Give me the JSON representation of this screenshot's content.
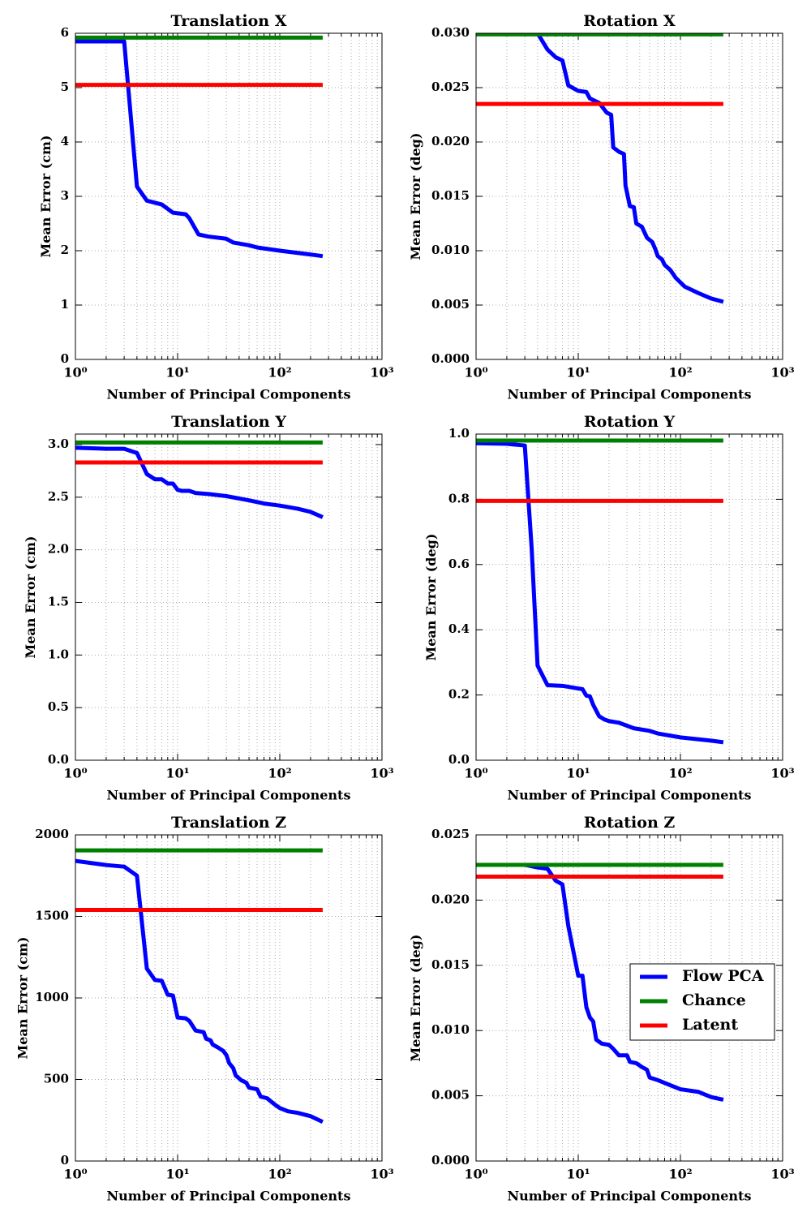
{
  "chart_data": [
    {
      "type": "line",
      "title": "Translation X",
      "xlabel": "Number of Principal Components",
      "ylabel": "Mean Error (cm)",
      "xscale": "log",
      "xlim": [
        1,
        1000
      ],
      "xticks": [
        {
          "value": 1,
          "label": "10⁰"
        },
        {
          "value": 10,
          "label": "10¹"
        },
        {
          "value": 100,
          "label": "10²"
        },
        {
          "value": 1000,
          "label": "10³"
        }
      ],
      "ylim": [
        0,
        6
      ],
      "yticks": [
        0,
        1,
        2,
        3,
        4,
        5,
        6
      ],
      "grid": true,
      "series": [
        {
          "color": "#0000ff",
          "x": [
            1,
            3,
            4,
            5,
            7,
            9,
            12,
            13,
            16,
            20,
            30,
            35,
            50,
            60,
            100,
            200,
            263
          ],
          "values": [
            5.85,
            5.85,
            3.18,
            2.92,
            2.85,
            2.7,
            2.67,
            2.6,
            2.3,
            2.26,
            2.22,
            2.15,
            2.1,
            2.06,
            2.0,
            1.93,
            1.9
          ]
        },
        {
          "color": "#008000",
          "x": [
            1,
            263
          ],
          "values": [
            5.92,
            5.92
          ]
        },
        {
          "color": "#ff0000",
          "x": [
            1,
            263
          ],
          "values": [
            5.05,
            5.05
          ]
        }
      ]
    },
    {
      "type": "line",
      "title": "Rotation X",
      "xlabel": "Number of Principal Components",
      "ylabel": "Mean Error (deg)",
      "xscale": "log",
      "xlim": [
        1,
        1000
      ],
      "xticks": [
        {
          "value": 1,
          "label": "10⁰"
        },
        {
          "value": 10,
          "label": "10¹"
        },
        {
          "value": 100,
          "label": "10²"
        },
        {
          "value": 1000,
          "label": "10³"
        }
      ],
      "ylim": [
        0,
        0.03
      ],
      "yticks": [
        {
          "value": 0,
          "label": "0.000"
        },
        0.005,
        {
          "value": 0.01,
          "label": "0.010"
        },
        0.015,
        {
          "value": 0.02,
          "label": "0.020"
        },
        0.025,
        {
          "value": 0.03,
          "label": "0.030"
        }
      ],
      "grid": true,
      "series": [
        {
          "color": "#0000ff",
          "x": [
            4,
            5,
            6,
            7,
            8,
            10,
            12,
            13,
            16,
            19,
            21,
            22,
            25,
            28,
            29,
            32,
            35,
            37,
            42,
            47,
            53,
            57,
            60,
            66,
            70,
            80,
            90,
            110,
            150,
            200,
            263
          ],
          "values": [
            0.03,
            0.0285,
            0.0278,
            0.0275,
            0.0252,
            0.0247,
            0.0246,
            0.024,
            0.0236,
            0.0227,
            0.0225,
            0.0195,
            0.0191,
            0.0189,
            0.016,
            0.0141,
            0.014,
            0.0125,
            0.0122,
            0.0112,
            0.0108,
            0.0101,
            0.0095,
            0.0092,
            0.0087,
            0.0082,
            0.0075,
            0.0067,
            0.0061,
            0.0056,
            0.0053
          ]
        },
        {
          "color": "#008000",
          "x": [
            1,
            263
          ],
          "values": [
            0.0299,
            0.0299
          ]
        },
        {
          "color": "#ff0000",
          "x": [
            1,
            263
          ],
          "values": [
            0.0235,
            0.0235
          ]
        }
      ]
    },
    {
      "type": "line",
      "title": "Translation Y",
      "xlabel": "Number of Principal Components",
      "ylabel": "Mean Error (cm)",
      "xscale": "log",
      "xlim": [
        1,
        1000
      ],
      "xticks": [
        {
          "value": 1,
          "label": "10⁰"
        },
        {
          "value": 10,
          "label": "10¹"
        },
        {
          "value": 100,
          "label": "10²"
        },
        {
          "value": 1000,
          "label": "10³"
        }
      ],
      "ylim": [
        0,
        3.1
      ],
      "yticks": [
        {
          "value": 0,
          "label": "0.0"
        },
        0.5,
        {
          "value": 1,
          "label": "1.0"
        },
        1.5,
        {
          "value": 2,
          "label": "2.0"
        },
        2.5,
        {
          "value": 3,
          "label": "3.0"
        }
      ],
      "grid": true,
      "series": [
        {
          "color": "#0000ff",
          "x": [
            1,
            2,
            3,
            4,
            5,
            6,
            7,
            8,
            9,
            10,
            11,
            13,
            15,
            20,
            30,
            50,
            70,
            100,
            150,
            200,
            263
          ],
          "values": [
            2.97,
            2.96,
            2.96,
            2.92,
            2.72,
            2.67,
            2.67,
            2.63,
            2.63,
            2.57,
            2.56,
            2.56,
            2.54,
            2.53,
            2.51,
            2.47,
            2.44,
            2.42,
            2.39,
            2.36,
            2.31
          ]
        },
        {
          "color": "#008000",
          "x": [
            1,
            263
          ],
          "values": [
            3.02,
            3.02
          ]
        },
        {
          "color": "#ff0000",
          "x": [
            1,
            263
          ],
          "values": [
            2.83,
            2.83
          ]
        }
      ]
    },
    {
      "type": "line",
      "title": "Rotation Y",
      "xlabel": "Number of Principal Components",
      "ylabel": "Mean Error (deg)",
      "xscale": "log",
      "xlim": [
        1,
        1000
      ],
      "xticks": [
        {
          "value": 1,
          "label": "10⁰"
        },
        {
          "value": 10,
          "label": "10¹"
        },
        {
          "value": 100,
          "label": "10²"
        },
        {
          "value": 1000,
          "label": "10³"
        }
      ],
      "ylim": [
        0,
        1
      ],
      "yticks": [
        {
          "value": 0,
          "label": "0.0"
        },
        0.2,
        0.4,
        0.6,
        0.8,
        {
          "value": 1,
          "label": "1.0"
        }
      ],
      "grid": true,
      "series": [
        {
          "color": "#0000ff",
          "x": [
            1,
            2,
            3,
            3.5,
            4,
            5,
            7,
            10,
            11,
            12,
            13,
            14,
            16,
            18,
            20,
            25,
            35,
            50,
            60,
            100,
            200,
            263
          ],
          "values": [
            0.972,
            0.97,
            0.965,
            0.65,
            0.29,
            0.23,
            0.228,
            0.22,
            0.218,
            0.198,
            0.196,
            0.17,
            0.135,
            0.125,
            0.12,
            0.115,
            0.098,
            0.09,
            0.082,
            0.07,
            0.06,
            0.055
          ]
        },
        {
          "color": "#008000",
          "x": [
            1,
            263
          ],
          "values": [
            0.98,
            0.98
          ]
        },
        {
          "color": "#ff0000",
          "x": [
            1,
            263
          ],
          "values": [
            0.795,
            0.795
          ]
        }
      ]
    },
    {
      "type": "line",
      "title": "Translation Z",
      "xlabel": "Number of Principal Components",
      "ylabel": "Mean Error (cm)",
      "xscale": "log",
      "xlim": [
        1,
        1000
      ],
      "xticks": [
        {
          "value": 1,
          "label": "10⁰"
        },
        {
          "value": 10,
          "label": "10¹"
        },
        {
          "value": 100,
          "label": "10²"
        },
        {
          "value": 1000,
          "label": "10³"
        }
      ],
      "ylim": [
        0,
        2000
      ],
      "yticks": [
        0,
        500,
        1000,
        1500,
        2000
      ],
      "grid": true,
      "series": [
        {
          "color": "#0000ff",
          "x": [
            1,
            2,
            3,
            4,
            5,
            6,
            7,
            8,
            9,
            10,
            12,
            13,
            15,
            18,
            19,
            21,
            22,
            25,
            28,
            30,
            32,
            35,
            37,
            42,
            47,
            50,
            60,
            65,
            75,
            90,
            100,
            120,
            150,
            200,
            263
          ],
          "values": [
            1840,
            1815,
            1805,
            1750,
            1180,
            1110,
            1105,
            1020,
            1015,
            880,
            875,
            860,
            800,
            790,
            750,
            740,
            715,
            695,
            675,
            650,
            600,
            570,
            525,
            495,
            480,
            450,
            440,
            395,
            385,
            345,
            325,
            305,
            295,
            275,
            240
          ]
        },
        {
          "color": "#008000",
          "x": [
            1,
            263
          ],
          "values": [
            1905,
            1905
          ]
        },
        {
          "color": "#ff0000",
          "x": [
            1,
            263
          ],
          "values": [
            1540,
            1540
          ]
        }
      ]
    },
    {
      "type": "line",
      "title": "Rotation Z",
      "xlabel": "Number of Principal Components",
      "ylabel": "Mean Error (deg)",
      "xscale": "log",
      "xlim": [
        1,
        1000
      ],
      "xticks": [
        {
          "value": 1,
          "label": "10⁰"
        },
        {
          "value": 10,
          "label": "10¹"
        },
        {
          "value": 100,
          "label": "10²"
        },
        {
          "value": 1000,
          "label": "10³"
        }
      ],
      "ylim": [
        0,
        0.025
      ],
      "yticks": [
        {
          "value": 0,
          "label": "0.000"
        },
        0.005,
        {
          "value": 0.01,
          "label": "0.010"
        },
        0.015,
        {
          "value": 0.02,
          "label": "0.020"
        },
        0.025
      ],
      "grid": true,
      "legend": "center right",
      "series": [
        {
          "name": "Flow PCA",
          "color": "#0000ff",
          "x": [
            1,
            3,
            4,
            5,
            6,
            7,
            8,
            9,
            10,
            11,
            12,
            13,
            14,
            15,
            17,
            20,
            22,
            25,
            30,
            32,
            37,
            42,
            47,
            50,
            60,
            80,
            100,
            150,
            200,
            263
          ],
          "values": [
            0.0227,
            0.0227,
            0.0225,
            0.0224,
            0.0215,
            0.0212,
            0.018,
            0.016,
            0.0142,
            0.0142,
            0.0118,
            0.011,
            0.0107,
            0.0093,
            0.009,
            0.0089,
            0.0086,
            0.0081,
            0.0081,
            0.0076,
            0.0075,
            0.0072,
            0.007,
            0.0064,
            0.0062,
            0.0058,
            0.0055,
            0.0053,
            0.0049,
            0.0047
          ]
        },
        {
          "name": "Chance",
          "color": "#008000",
          "x": [
            1,
            263
          ],
          "values": [
            0.0227,
            0.0227
          ]
        },
        {
          "name": "Latent",
          "color": "#ff0000",
          "x": [
            1,
            263
          ],
          "values": [
            0.0218,
            0.0218
          ]
        }
      ]
    }
  ]
}
